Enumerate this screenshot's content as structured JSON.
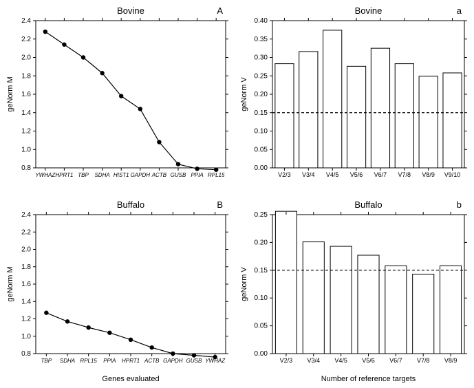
{
  "background_color": "#ffffff",
  "line_color": "#000000",
  "text_color": "#000000",
  "panel_A": {
    "type": "line",
    "title": "Bovine",
    "letter": "A",
    "ylabel": "geNorm M",
    "categories": [
      "YWHAZ",
      "HPRT1",
      "TBP",
      "SDHA",
      "HIST1",
      "GAPDH",
      "ACTB",
      "GUSB",
      "PPIA",
      "RPL15"
    ],
    "values": [
      2.28,
      2.14,
      2.0,
      1.83,
      1.58,
      1.44,
      1.08,
      0.84,
      0.79,
      0.78
    ],
    "ylim": [
      0.8,
      2.4
    ],
    "ytick_step": 0.2,
    "marker": "circle",
    "marker_size": 3.2,
    "marker_color": "#000000",
    "line_width": 1.2
  },
  "panel_a": {
    "type": "bar",
    "title": "Bovine",
    "letter": "a",
    "ylabel": "geNorm V",
    "categories": [
      "V2/3",
      "V3/4",
      "V4/5",
      "V5/6",
      "V6/7",
      "V7/8",
      "V8/9",
      "V9/10"
    ],
    "values": [
      0.283,
      0.316,
      0.374,
      0.276,
      0.325,
      0.283,
      0.249,
      0.258
    ],
    "ylim": [
      0.0,
      0.4
    ],
    "ytick_step": 0.05,
    "threshold": 0.15,
    "bar_fill": "#ffffff",
    "bar_stroke": "#000000",
    "bar_width": 0.78,
    "dash_pattern": "4,3"
  },
  "panel_B": {
    "type": "line",
    "title": "Buffalo",
    "letter": "B",
    "ylabel": "geNorm M",
    "xlabel": "Genes evaluated",
    "categories": [
      "TBP",
      "SDHA",
      "RPL15",
      "PPIA",
      "HPRT1",
      "ACTB",
      "GAPDH",
      "GUSB",
      "YWHAZ"
    ],
    "values": [
      1.27,
      1.17,
      1.1,
      1.04,
      0.96,
      0.87,
      0.8,
      0.78,
      0.76
    ],
    "ylim": [
      0.8,
      2.4
    ],
    "ytick_step": 0.2,
    "marker": "circle",
    "marker_size": 3.2,
    "marker_color": "#000000",
    "line_width": 1.2
  },
  "panel_b": {
    "type": "bar",
    "title": "Buffalo",
    "letter": "b",
    "ylabel": "geNorm V",
    "xlabel": "Number of reference targets",
    "categories": [
      "V2/3",
      "V3/4",
      "V4/5",
      "V5/6",
      "V6/7",
      "V7/8",
      "V8/9"
    ],
    "values": [
      0.256,
      0.201,
      0.193,
      0.177,
      0.158,
      0.143,
      0.158
    ],
    "ylim": [
      0.0,
      0.25
    ],
    "ytick_step": 0.05,
    "threshold": 0.15,
    "bar_fill": "#ffffff",
    "bar_stroke": "#000000",
    "bar_width": 0.78,
    "dash_pattern": "4,3"
  }
}
